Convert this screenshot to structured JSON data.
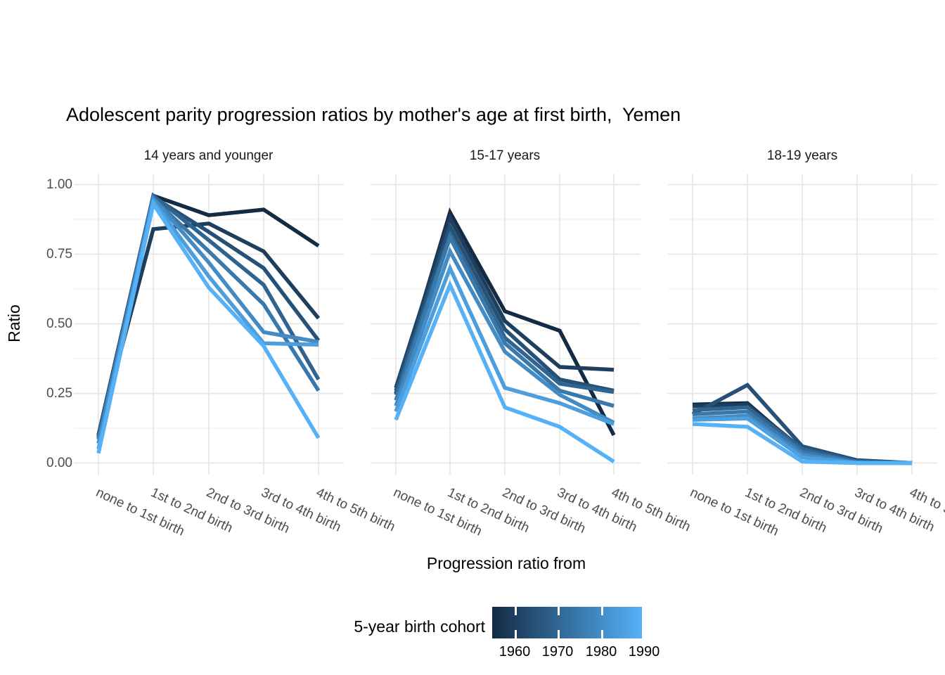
{
  "chart_data": {
    "type": "line",
    "title": "Adolescent parity progression ratios by mother's age at first birth,  Yemen",
    "xlabel": "Progression ratio from",
    "ylabel": "Ratio",
    "ylim": [
      0,
      1
    ],
    "yticks": [
      "1.00",
      "0.75",
      "0.50",
      "0.25",
      "0.00"
    ],
    "ytick_values": [
      1.0,
      0.75,
      0.5,
      0.25,
      0.0
    ],
    "grid": "major+minor horizontal, major vertical, light gray on white",
    "facets": [
      "14 years and younger",
      "15-17 years",
      "18-19 years"
    ],
    "categories": [
      "none to 1st birth",
      "1st to 2nd birth",
      "2nd to 3rd birth",
      "3rd to 4th birth",
      "4th to 5th birth"
    ],
    "series": [
      {
        "cohort": "1955",
        "color": "#132B43",
        "values": [
          [
            0.1,
            0.96,
            0.89,
            0.91,
            0.78
          ],
          [
            0.25,
            0.9,
            0.545,
            0.475,
            0.1
          ],
          [
            0.21,
            0.215,
            0.045,
            0.005,
            0.0
          ]
        ]
      },
      {
        "cohort": "1960",
        "color": "#1D3E5D",
        "values": [
          [
            0.1,
            0.84,
            0.86,
            0.76,
            0.52
          ],
          [
            0.27,
            0.88,
            0.51,
            0.345,
            0.335
          ],
          [
            0.205,
            0.21,
            0.05,
            0.008,
            0.0
          ]
        ]
      },
      {
        "cohort": "1965",
        "color": "#265176",
        "values": [
          [
            0.095,
            0.955,
            0.83,
            0.7,
            0.44
          ],
          [
            0.26,
            0.85,
            0.48,
            0.3,
            0.26
          ],
          [
            0.175,
            0.28,
            0.06,
            0.01,
            0.0
          ]
        ]
      },
      {
        "cohort": "1970",
        "color": "#306490",
        "values": [
          [
            0.09,
            0.96,
            0.8,
            0.64,
            0.3
          ],
          [
            0.245,
            0.82,
            0.45,
            0.285,
            0.255
          ],
          [
            0.19,
            0.2,
            0.05,
            0.005,
            0.0
          ]
        ]
      },
      {
        "cohort": "1975",
        "color": "#3978AA",
        "values": [
          [
            0.085,
            0.95,
            0.76,
            0.57,
            0.26
          ],
          [
            0.225,
            0.81,
            0.43,
            0.26,
            0.205
          ],
          [
            0.175,
            0.185,
            0.04,
            0.003,
            0.0
          ]
        ]
      },
      {
        "cohort": "1980",
        "color": "#438BC4",
        "values": [
          [
            0.07,
            0.95,
            0.72,
            0.47,
            0.435
          ],
          [
            0.205,
            0.76,
            0.4,
            0.245,
            0.145
          ],
          [
            0.16,
            0.17,
            0.03,
            0.0,
            0.0
          ]
        ]
      },
      {
        "cohort": "1985",
        "color": "#4C9EDD",
        "values": [
          [
            0.05,
            0.94,
            0.67,
            0.43,
            0.425
          ],
          [
            0.185,
            0.7,
            0.27,
            0.215,
            0.14
          ],
          [
            0.155,
            0.16,
            0.02,
            0.0,
            0.0
          ]
        ]
      },
      {
        "cohort": "1990",
        "color": "#56B1F7",
        "values": [
          [
            0.035,
            0.93,
            0.63,
            0.42,
            0.09
          ],
          [
            0.155,
            0.64,
            0.2,
            0.13,
            0.005
          ],
          [
            0.14,
            0.13,
            0.005,
            0.0,
            0.0
          ]
        ]
      }
    ],
    "legend": {
      "title": "5-year birth cohort",
      "type": "continuous-colorbar",
      "low_color": "#132B43",
      "high_color": "#56B1F7",
      "tick_labels": [
        "1960",
        "1970",
        "1980",
        "1990"
      ],
      "position": "bottom"
    },
    "colors": {
      "background": "#FFFFFF",
      "grid_major": "#E6E6E6",
      "grid_minor": "#EDEDED",
      "tick_text": "#4D4D4D",
      "title_text": "#000000"
    }
  }
}
